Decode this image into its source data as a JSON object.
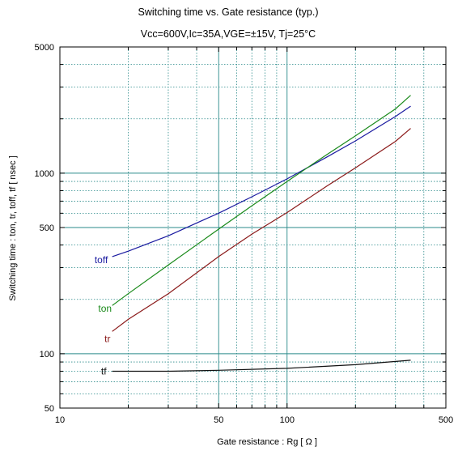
{
  "chart_data": {
    "type": "line",
    "title": "Switching time  vs.  Gate resistance  (typ.)",
    "subtitle": "Vcc=600V,Ic=35A,VGE=±15V, Tj=25°C",
    "xlabel": "Gate resistance  :  Rg  [    Ω  ]",
    "ylabel": "Switching time  :  ton, tr, toff, tf  [ nsec ]",
    "xscale": "log",
    "yscale": "log",
    "xlim": [
      10,
      500
    ],
    "ylim": [
      50,
      5000
    ],
    "xticks": [
      {
        "value": 10,
        "label": "10"
      },
      {
        "value": 50,
        "label": "50"
      },
      {
        "value": 100,
        "label": "100"
      },
      {
        "value": 500,
        "label": "500"
      }
    ],
    "yticks": [
      {
        "value": 50,
        "label": "50"
      },
      {
        "value": 100,
        "label": "100"
      },
      {
        "value": 500,
        "label": "500"
      },
      {
        "value": 1000,
        "label": "1000"
      },
      {
        "value": 5000,
        "label": "5000"
      }
    ],
    "grid": true,
    "series": [
      {
        "name": "toff",
        "color": "#1a1aa0",
        "label_at": [
          15.2,
          330
        ],
        "points": [
          [
            17,
            345
          ],
          [
            20,
            370
          ],
          [
            30,
            450
          ],
          [
            40,
            530
          ],
          [
            50,
            600
          ],
          [
            70,
            740
          ],
          [
            100,
            930
          ],
          [
            150,
            1230
          ],
          [
            200,
            1510
          ],
          [
            300,
            2060
          ],
          [
            350,
            2350
          ]
        ]
      },
      {
        "name": "ton",
        "color": "#1a8a1a",
        "label_at": [
          15.8,
          178
        ],
        "points": [
          [
            17,
            185
          ],
          [
            20,
            215
          ],
          [
            30,
            310
          ],
          [
            50,
            490
          ],
          [
            70,
            660
          ],
          [
            100,
            900
          ],
          [
            150,
            1270
          ],
          [
            200,
            1610
          ],
          [
            300,
            2270
          ],
          [
            350,
            2700
          ]
        ]
      },
      {
        "name": "tr",
        "color": "#8b1a1a",
        "label_at": [
          16.2,
          121
        ],
        "points": [
          [
            17,
            133
          ],
          [
            20,
            155
          ],
          [
            30,
            215
          ],
          [
            50,
            345
          ],
          [
            70,
            460
          ],
          [
            100,
            605
          ],
          [
            150,
            850
          ],
          [
            200,
            1070
          ],
          [
            300,
            1500
          ],
          [
            350,
            1770
          ]
        ]
      },
      {
        "name": "tf",
        "color": "#111111",
        "label_at": [
          15.6,
          80
        ],
        "points": [
          [
            17,
            80
          ],
          [
            30,
            80
          ],
          [
            50,
            81
          ],
          [
            100,
            83
          ],
          [
            200,
            87
          ],
          [
            350,
            92
          ]
        ]
      }
    ]
  }
}
